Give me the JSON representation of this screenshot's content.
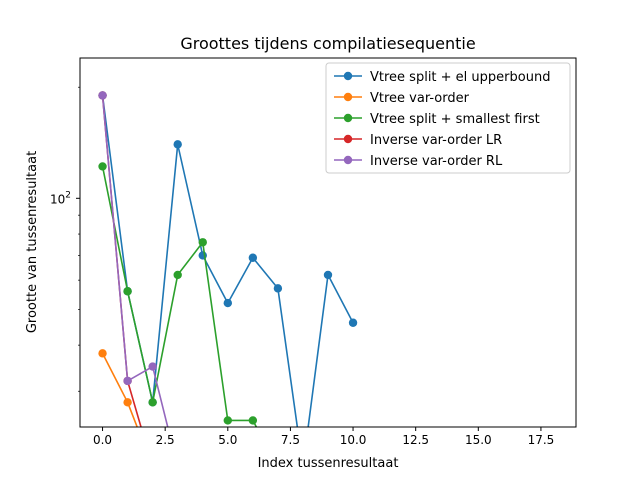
{
  "chart_data": {
    "type": "line",
    "title": "Groottes tijdens compilatiesequentie",
    "xlabel": "Index tussenresultaat",
    "ylabel": "Grootte van tussenresultaat",
    "y_scale": "log",
    "xlim": [
      -0.9,
      18.9
    ],
    "ylim": [
      24,
      240
    ],
    "x_ticks": [
      0.0,
      2.5,
      5.0,
      7.5,
      10.0,
      12.5,
      15.0,
      17.5
    ],
    "x_tick_labels": [
      "0.0",
      "2.5",
      "5.0",
      "7.5",
      "10.0",
      "12.5",
      "15.0",
      "17.5"
    ],
    "y_major_ticks": [
      100
    ],
    "y_tick_labels": [
      "10^2"
    ],
    "y_tick_label_base": "10",
    "y_tick_label_exp": "2",
    "grid": false,
    "legend_position": "top-right",
    "series": [
      {
        "name": "Vtree split + el upperbound",
        "color": "#1f77b4",
        "points": [
          [
            0,
            190
          ],
          [
            1,
            56
          ],
          [
            2,
            28
          ],
          [
            3,
            140
          ],
          [
            4,
            70
          ],
          [
            5,
            52
          ],
          [
            6,
            69
          ],
          [
            7,
            57
          ],
          [
            8,
            0
          ],
          [
            9,
            62
          ],
          [
            10,
            46
          ]
        ]
      },
      {
        "name": "Vtree var-order",
        "color": "#ff7f0e",
        "points": [
          [
            0,
            38
          ],
          [
            1,
            28
          ],
          [
            2,
            0
          ]
        ]
      },
      {
        "name": "Vtree split + smallest first",
        "color": "#2ca02c",
        "points": [
          [
            0,
            122
          ],
          [
            1,
            56
          ],
          [
            2,
            28
          ],
          [
            3,
            62
          ],
          [
            4,
            76
          ],
          [
            5,
            25
          ],
          [
            6,
            25
          ],
          [
            7,
            0
          ]
        ]
      },
      {
        "name": "Inverse var-order LR",
        "color": "#d62728",
        "points": [
          [
            0,
            190
          ],
          [
            1,
            32
          ],
          [
            2,
            0
          ]
        ]
      },
      {
        "name": "Inverse var-order RL",
        "color": "#9467bd",
        "points": [
          [
            0,
            190
          ],
          [
            1,
            32
          ],
          [
            2,
            35
          ],
          [
            3,
            0
          ]
        ]
      }
    ]
  }
}
